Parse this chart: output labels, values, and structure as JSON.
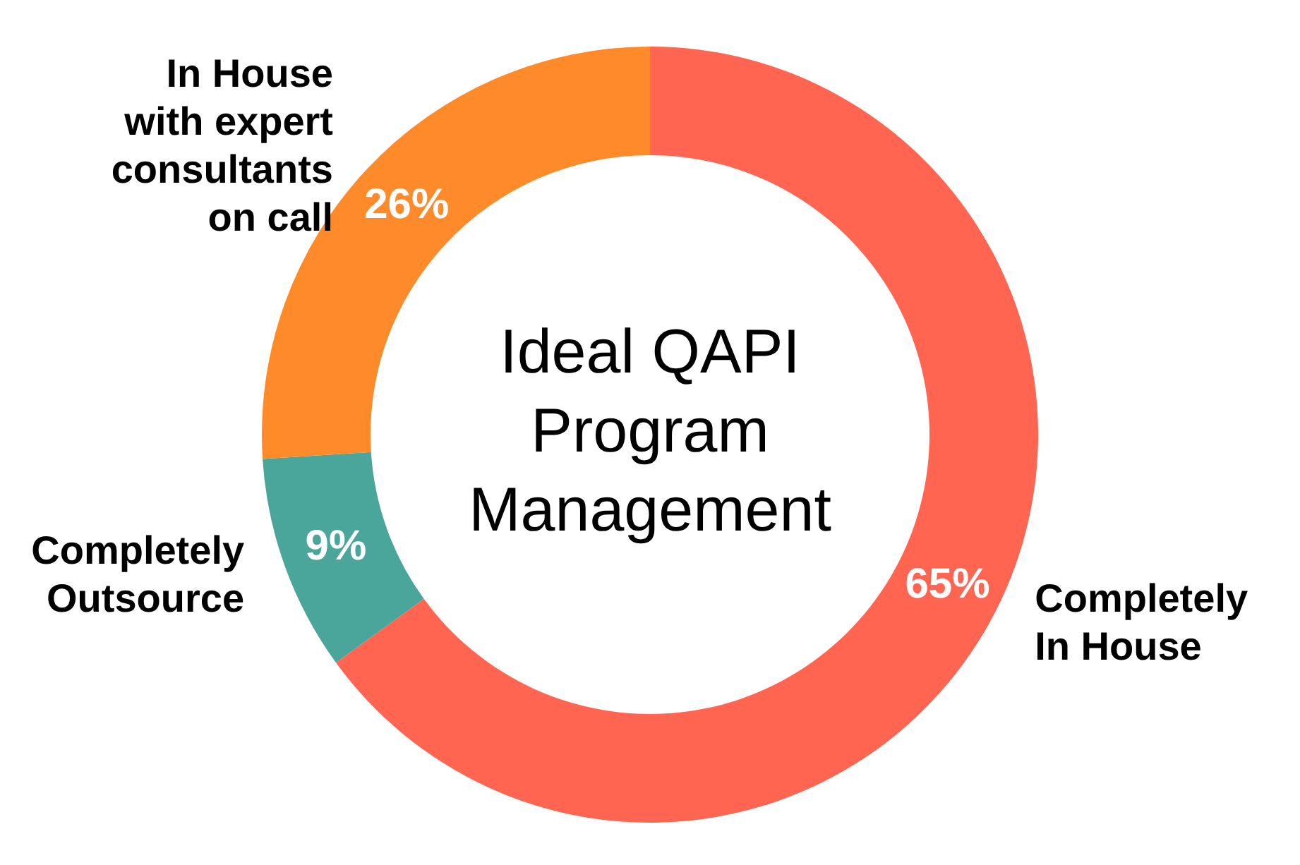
{
  "chart_data": {
    "type": "donut",
    "title": "Ideal QAPI Program Management",
    "categories": [
      "Completely In House",
      "Completely Outsource",
      "In House with expert consultants on call"
    ],
    "values": [
      65,
      9,
      26
    ],
    "colors": [
      "#ff6550",
      "#4aa59a",
      "#ff8a2a"
    ],
    "value_labels": [
      "65%",
      "9%",
      "26%"
    ],
    "legend": false
  }
}
